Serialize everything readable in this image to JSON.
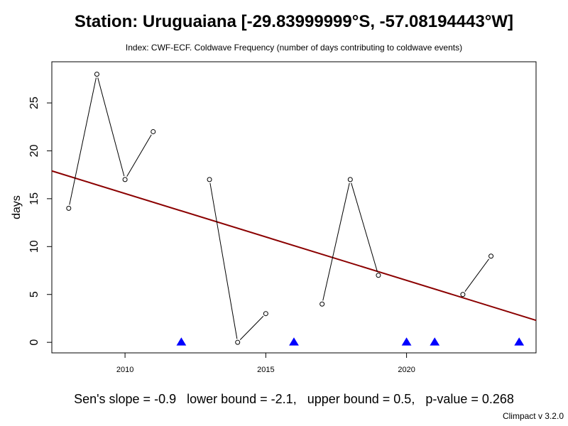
{
  "chart_data": {
    "type": "line",
    "title": "Station: Uruguaiana [-29.83999999°S, -57.08194443°W]",
    "subtitle": "Index: CWF-ECF. Coldwave Frequency (number of days contributing to coldwave events)",
    "xlabel": "",
    "ylabel": "days",
    "xlim": [
      2007.4,
      2024.6
    ],
    "ylim": [
      -1.1,
      29.3
    ],
    "x_ticks": [
      2010,
      2015,
      2020
    ],
    "x_tick_labels": [
      "2010",
      "2015",
      "2020"
    ],
    "y_ticks": [
      0,
      5,
      10,
      15,
      20,
      25
    ],
    "y_tick_labels": [
      "0",
      "5",
      "10",
      "15",
      "20",
      "25"
    ],
    "grid": false,
    "series": [
      {
        "color": "#000000",
        "points": [
          {
            "x": 2008,
            "y": 14
          },
          {
            "x": 2009,
            "y": 28
          },
          {
            "x": 2010,
            "y": 17
          },
          {
            "x": 2011,
            "y": 22
          },
          {
            "x": 2013,
            "y": 17
          },
          {
            "x": 2014,
            "y": 0
          },
          {
            "x": 2015,
            "y": 3
          },
          {
            "x": 2017,
            "y": 4
          },
          {
            "x": 2018,
            "y": 17
          },
          {
            "x": 2019,
            "y": 7
          },
          {
            "x": 2022,
            "y": 5
          },
          {
            "x": 2023,
            "y": 9
          }
        ]
      }
    ],
    "missing_years": [
      2012,
      2016,
      2020,
      2021,
      2024
    ],
    "missing_marker_color": "#0000ff",
    "trend": {
      "color": "#8b0000",
      "x": [
        2007.4,
        2024.6
      ],
      "y": [
        17.9,
        2.3
      ]
    }
  },
  "footer": {
    "stats": "Sen's slope = -0.9   lower bound = -2.1,   upper bound = 0.5,   p-value = 0.268",
    "credit": "Climpact v 3.2.0"
  }
}
